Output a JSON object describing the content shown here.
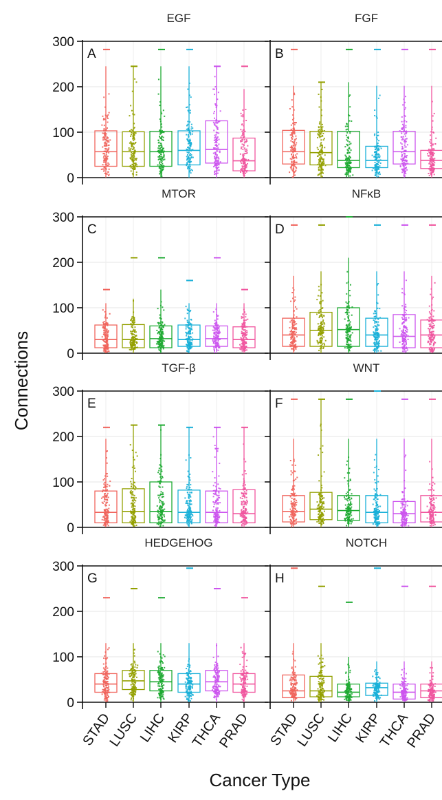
{
  "figure": {
    "ylabel": "Connections",
    "xlabel": "Cancer Type"
  },
  "chart_data": {
    "type": "box",
    "categories": [
      "STAD",
      "LUSC",
      "LIHC",
      "KIRP",
      "THCA",
      "PRAD"
    ],
    "colors": [
      "#f0645c",
      "#93a000",
      "#1eaa32",
      "#1ab0d8",
      "#cc55ee",
      "#f0559e"
    ],
    "ylim": [
      0,
      300
    ],
    "yticks": [
      0,
      100,
      200,
      300
    ],
    "grid": true,
    "panels": [
      {
        "letter": "A",
        "title": "EGF",
        "boxes": [
          {
            "q1": 25,
            "median": 57,
            "q3": 103,
            "whisker_low": 0,
            "whisker_high": 245,
            "max": 282
          },
          {
            "q1": 25,
            "median": 57,
            "q3": 101,
            "whisker_low": 0,
            "whisker_high": 245,
            "max": 245
          },
          {
            "q1": 25,
            "median": 57,
            "q3": 102,
            "whisker_low": 0,
            "whisker_high": 245,
            "max": 282
          },
          {
            "q1": 28,
            "median": 60,
            "q3": 103,
            "whisker_low": 0,
            "whisker_high": 245,
            "max": 282
          },
          {
            "q1": 32,
            "median": 62,
            "q3": 125,
            "whisker_low": 0,
            "whisker_high": 245,
            "max": 245
          },
          {
            "q1": 15,
            "median": 37,
            "q3": 87,
            "whisker_low": 0,
            "whisker_high": 195,
            "max": 245
          }
        ]
      },
      {
        "letter": "B",
        "title": "FGF",
        "boxes": [
          {
            "q1": 30,
            "median": 57,
            "q3": 104,
            "whisker_low": 0,
            "whisker_high": 202,
            "max": 282
          },
          {
            "q1": 28,
            "median": 55,
            "q3": 102,
            "whisker_low": 0,
            "whisker_high": 210,
            "max": 210
          },
          {
            "q1": 22,
            "median": 38,
            "q3": 102,
            "whisker_low": 0,
            "whisker_high": 210,
            "max": 282
          },
          {
            "q1": 22,
            "median": 38,
            "q3": 69,
            "whisker_low": 0,
            "whisker_high": 202,
            "max": 282
          },
          {
            "q1": 30,
            "median": 57,
            "q3": 102,
            "whisker_low": 0,
            "whisker_high": 202,
            "max": 282
          },
          {
            "q1": 20,
            "median": 38,
            "q3": 60,
            "whisker_low": 0,
            "whisker_high": 202,
            "max": 282
          }
        ]
      },
      {
        "letter": "C",
        "title": "MTOR",
        "boxes": [
          {
            "q1": 12,
            "median": 30,
            "q3": 62,
            "whisker_low": 0,
            "whisker_high": 110,
            "max": 140
          },
          {
            "q1": 12,
            "median": 30,
            "q3": 63,
            "whisker_low": 0,
            "whisker_high": 120,
            "max": 210
          },
          {
            "q1": 12,
            "median": 32,
            "q3": 60,
            "whisker_low": 0,
            "whisker_high": 140,
            "max": 210
          },
          {
            "q1": 15,
            "median": 30,
            "q3": 62,
            "whisker_low": 0,
            "whisker_high": 110,
            "max": 160
          },
          {
            "q1": 15,
            "median": 32,
            "q3": 60,
            "whisker_low": 0,
            "whisker_high": 110,
            "max": 210
          },
          {
            "q1": 12,
            "median": 30,
            "q3": 58,
            "whisker_low": 0,
            "whisker_high": 110,
            "max": 140
          }
        ]
      },
      {
        "letter": "D",
        "title": "NFκB",
        "boxes": [
          {
            "q1": 15,
            "median": 40,
            "q3": 77,
            "whisker_low": 0,
            "whisker_high": 170,
            "max": 282
          },
          {
            "q1": 15,
            "median": 50,
            "q3": 90,
            "whisker_low": 0,
            "whisker_high": 180,
            "max": 282
          },
          {
            "q1": 15,
            "median": 52,
            "q3": 100,
            "whisker_low": 0,
            "whisker_high": 210,
            "max": 300
          },
          {
            "q1": 15,
            "median": 40,
            "q3": 77,
            "whisker_low": 0,
            "whisker_high": 180,
            "max": 282
          },
          {
            "q1": 12,
            "median": 37,
            "q3": 85,
            "whisker_low": 0,
            "whisker_high": 180,
            "max": 282
          },
          {
            "q1": 12,
            "median": 40,
            "q3": 73,
            "whisker_low": 0,
            "whisker_high": 170,
            "max": 282
          }
        ]
      },
      {
        "letter": "E",
        "title": "TGF-β",
        "boxes": [
          {
            "q1": 10,
            "median": 33,
            "q3": 80,
            "whisker_low": 0,
            "whisker_high": 195,
            "max": 220
          },
          {
            "q1": 10,
            "median": 35,
            "q3": 85,
            "whisker_low": 0,
            "whisker_high": 225,
            "max": 225
          },
          {
            "q1": 10,
            "median": 35,
            "q3": 100,
            "whisker_low": 0,
            "whisker_high": 225,
            "max": 225
          },
          {
            "q1": 10,
            "median": 33,
            "q3": 82,
            "whisker_low": 0,
            "whisker_high": 220,
            "max": 220
          },
          {
            "q1": 10,
            "median": 33,
            "q3": 80,
            "whisker_low": 0,
            "whisker_high": 220,
            "max": 220
          },
          {
            "q1": 10,
            "median": 30,
            "q3": 83,
            "whisker_low": 0,
            "whisker_high": 220,
            "max": 220
          }
        ]
      },
      {
        "letter": "F",
        "title": "WNT",
        "boxes": [
          {
            "q1": 12,
            "median": 35,
            "q3": 70,
            "whisker_low": 0,
            "whisker_high": 195,
            "max": 282
          },
          {
            "q1": 17,
            "median": 40,
            "q3": 77,
            "whisker_low": 0,
            "whisker_high": 282,
            "max": 282
          },
          {
            "q1": 15,
            "median": 37,
            "q3": 70,
            "whisker_low": 0,
            "whisker_high": 195,
            "max": 282
          },
          {
            "q1": 10,
            "median": 33,
            "q3": 70,
            "whisker_low": 0,
            "whisker_high": 195,
            "max": 300
          },
          {
            "q1": 10,
            "median": 30,
            "q3": 57,
            "whisker_low": 0,
            "whisker_high": 195,
            "max": 282
          },
          {
            "q1": 12,
            "median": 33,
            "q3": 70,
            "whisker_low": 0,
            "whisker_high": 195,
            "max": 282
          }
        ]
      },
      {
        "letter": "G",
        "title": "HEDGEHOG",
        "boxes": [
          {
            "q1": 22,
            "median": 40,
            "q3": 63,
            "whisker_low": 0,
            "whisker_high": 130,
            "max": 230
          },
          {
            "q1": 28,
            "median": 47,
            "q3": 70,
            "whisker_low": 0,
            "whisker_high": 130,
            "max": 250
          },
          {
            "q1": 25,
            "median": 45,
            "q3": 70,
            "whisker_low": 0,
            "whisker_high": 130,
            "max": 230
          },
          {
            "q1": 22,
            "median": 40,
            "q3": 63,
            "whisker_low": 0,
            "whisker_high": 130,
            "max": 295
          },
          {
            "q1": 25,
            "median": 45,
            "q3": 70,
            "whisker_low": 0,
            "whisker_high": 130,
            "max": 250
          },
          {
            "q1": 22,
            "median": 40,
            "q3": 63,
            "whisker_low": 0,
            "whisker_high": 130,
            "max": 230
          }
        ]
      },
      {
        "letter": "H",
        "title": "NOTCH",
        "boxes": [
          {
            "q1": 10,
            "median": 25,
            "q3": 60,
            "whisker_low": 0,
            "whisker_high": 130,
            "max": 295
          },
          {
            "q1": 12,
            "median": 25,
            "q3": 57,
            "whisker_low": 0,
            "whisker_high": 130,
            "max": 255
          },
          {
            "q1": 12,
            "median": 22,
            "q3": 40,
            "whisker_low": 0,
            "whisker_high": 100,
            "max": 220
          },
          {
            "q1": 15,
            "median": 32,
            "q3": 42,
            "whisker_low": 0,
            "whisker_high": 90,
            "max": 295
          },
          {
            "q1": 7,
            "median": 22,
            "q3": 40,
            "whisker_low": 0,
            "whisker_high": 90,
            "max": 255
          },
          {
            "q1": 10,
            "median": 25,
            "q3": 40,
            "whisker_low": 0,
            "whisker_high": 90,
            "max": 255
          }
        ]
      }
    ]
  }
}
